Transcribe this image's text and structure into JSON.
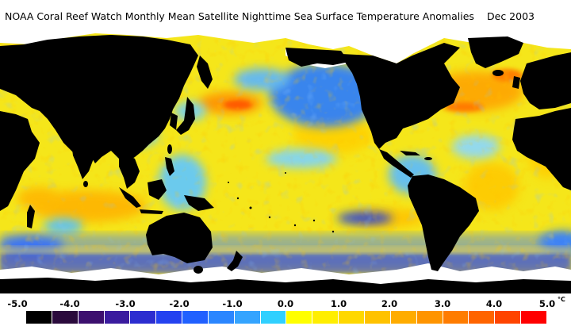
{
  "header": {
    "title": "NOAA Coral Reef Watch Monthly Mean Satellite Nighttime Sea Surface Temperature Anomalies",
    "date": "Dec 2003"
  },
  "map": {
    "projection": "equirectangular",
    "land_color": "#000000",
    "sea_ice_color": "#ffffff",
    "ocean_base_color": "#f5e61a"
  },
  "legend": {
    "ticks": [
      "-5.0",
      "-4.0",
      "-3.0",
      "-2.0",
      "-1.0",
      "0.0",
      "1.0",
      "2.0",
      "3.0",
      "4.0",
      "5.0"
    ],
    "unit": "°C",
    "swatches": [
      "#000000",
      "#2a0a3c",
      "#3c0f6e",
      "#3a1b9e",
      "#2c2dd0",
      "#2442f0",
      "#2060ff",
      "#2a86ff",
      "#34a4ff",
      "#30d0ff",
      "#ffff00",
      "#ffee00",
      "#ffd800",
      "#ffc200",
      "#ffac00",
      "#ff9400",
      "#ff7c00",
      "#ff6400",
      "#ff4400",
      "#ff0000"
    ]
  }
}
